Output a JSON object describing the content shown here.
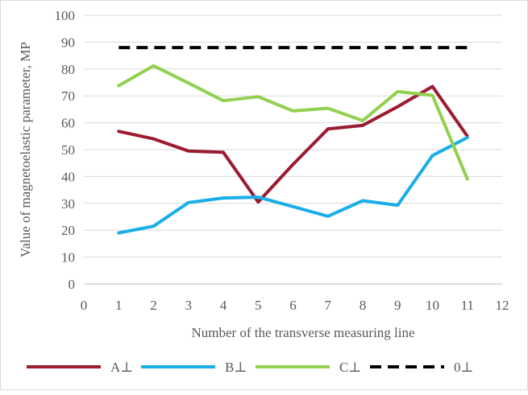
{
  "chart_data": {
    "type": "line",
    "xlabel": "Number of the transverse measuring line",
    "ylabel": "Value of magnetoelastic parameter, MP",
    "xlim": [
      0,
      12
    ],
    "ylim": [
      0,
      100
    ],
    "x_ticks": [
      0,
      1,
      2,
      3,
      4,
      5,
      6,
      7,
      8,
      9,
      10,
      11,
      12
    ],
    "y_ticks": [
      0,
      10,
      20,
      30,
      40,
      50,
      60,
      70,
      80,
      90,
      100
    ],
    "grid": "horizontal",
    "legend_position": "bottom",
    "x": [
      1,
      2,
      3,
      4,
      5,
      6,
      7,
      8,
      9,
      10,
      11
    ],
    "series": [
      {
        "name": "A⊥",
        "color": "#9b1b30",
        "dash": "solid",
        "values": [
          56.8,
          54,
          49.5,
          49,
          30.5,
          44.5,
          57.7,
          59,
          66,
          73.5,
          55
        ]
      },
      {
        "name": "B⊥",
        "color": "#1aaee8",
        "dash": "solid",
        "values": [
          19,
          21.5,
          30.3,
          32,
          32.3,
          28.8,
          25.2,
          31,
          29.3,
          47.8,
          54.5
        ]
      },
      {
        "name": "C⊥",
        "color": "#92d050",
        "dash": "solid",
        "values": [
          73.8,
          81.2,
          74.8,
          68.2,
          69.7,
          64.4,
          65.4,
          60.8,
          71.6,
          70.2,
          39
        ]
      },
      {
        "name": "0⊥",
        "color": "#000000",
        "dash": "dashed",
        "values": [
          88,
          88,
          88,
          88,
          88,
          88,
          88,
          88,
          88,
          88,
          88
        ]
      }
    ]
  }
}
